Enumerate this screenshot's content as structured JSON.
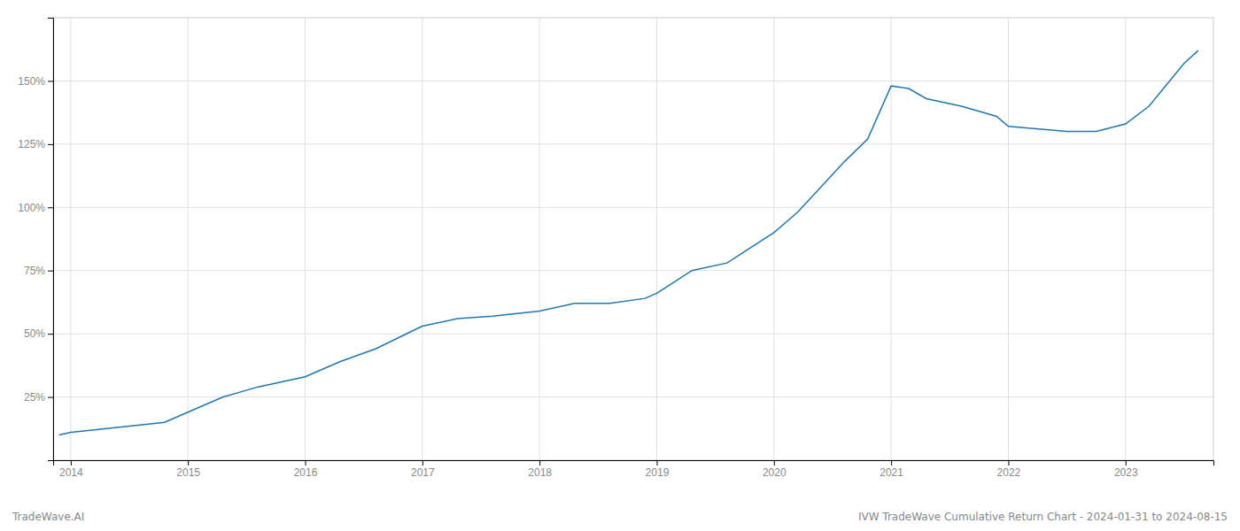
{
  "chart_data": {
    "type": "line",
    "title": "IVW TradeWave Cumulative Return Chart - 2024-01-31 to 2024-08-15",
    "annotations": [
      "TradeWave.AI"
    ],
    "color": "#1f77b4",
    "grid": true,
    "x": [
      2013.9,
      2014.0,
      2014.2,
      2014.5,
      2014.8,
      2015.0,
      2015.3,
      2015.6,
      2016.0,
      2016.3,
      2016.6,
      2017.0,
      2017.3,
      2017.6,
      2018.0,
      2018.3,
      2018.6,
      2018.9,
      2019.0,
      2019.3,
      2019.6,
      2019.9,
      2020.0,
      2020.2,
      2020.4,
      2020.6,
      2020.8,
      2021.0,
      2021.15,
      2021.3,
      2021.6,
      2021.9,
      2022.0,
      2022.5,
      2022.75,
      2023.0,
      2023.2,
      2023.5,
      2023.62
    ],
    "values": [
      10,
      11,
      12,
      13.5,
      15,
      19,
      25,
      29,
      33,
      39,
      44,
      53,
      56,
      57,
      59,
      62,
      62,
      64,
      66,
      75,
      78,
      87,
      90,
      98,
      108,
      118,
      127,
      148,
      147,
      143,
      140,
      136,
      132,
      130,
      130,
      133,
      140,
      157,
      162
    ],
    "xlim": [
      2013.85,
      2023.75
    ],
    "xticks": [
      2014,
      2015,
      2016,
      2017,
      2018,
      2019,
      2020,
      2021,
      2022,
      2023
    ],
    "ylim": [
      0,
      175
    ],
    "yticks": [
      {
        "value": 25,
        "label": "25%"
      },
      {
        "value": 50,
        "label": "50%"
      },
      {
        "value": 75,
        "label": "75%"
      },
      {
        "value": 100,
        "label": "100%"
      },
      {
        "value": 125,
        "label": "125%"
      },
      {
        "value": 150,
        "label": "150%"
      }
    ]
  }
}
